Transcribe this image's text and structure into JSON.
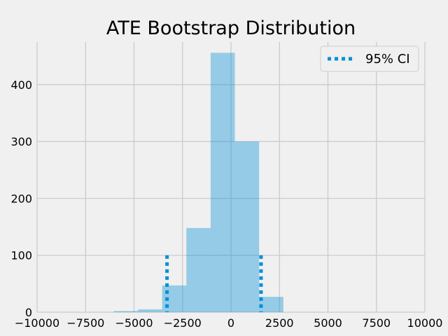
{
  "chart_data": {
    "type": "bar",
    "title": "ATE Bootstrap Distribution",
    "xlabel": "",
    "ylabel": "",
    "xlim": [
      -10000,
      10000
    ],
    "ylim": [
      0,
      475
    ],
    "grid": true,
    "x_ticks": [
      -10000,
      -7500,
      -5000,
      -2500,
      0,
      2500,
      5000,
      7500,
      10000
    ],
    "x_tick_labels": [
      "−10000",
      "−7500",
      "−5000",
      "−2500",
      "0",
      "2500",
      "5000",
      "7500",
      "10000"
    ],
    "y_ticks": [
      0,
      100,
      200,
      300,
      400
    ],
    "y_tick_labels": [
      "0",
      "100",
      "200",
      "300",
      "400"
    ],
    "bins": [
      {
        "x0": -6050,
        "x1": -4800,
        "count": 2
      },
      {
        "x0": -4800,
        "x1": -3550,
        "count": 5
      },
      {
        "x0": -3550,
        "x1": -2300,
        "count": 47
      },
      {
        "x0": -2300,
        "x1": -1050,
        "count": 148
      },
      {
        "x0": -1050,
        "x1": 200,
        "count": 456
      },
      {
        "x0": 200,
        "x1": 1450,
        "count": 300
      },
      {
        "x0": 1450,
        "x1": 2700,
        "count": 27
      }
    ],
    "bar_color": "#008fd5",
    "ci": {
      "lower": -3300,
      "upper": 1550,
      "height": 100,
      "color": "#008fd5"
    },
    "legend": {
      "position": "upper-right",
      "entries": [
        "95% CI"
      ]
    }
  }
}
